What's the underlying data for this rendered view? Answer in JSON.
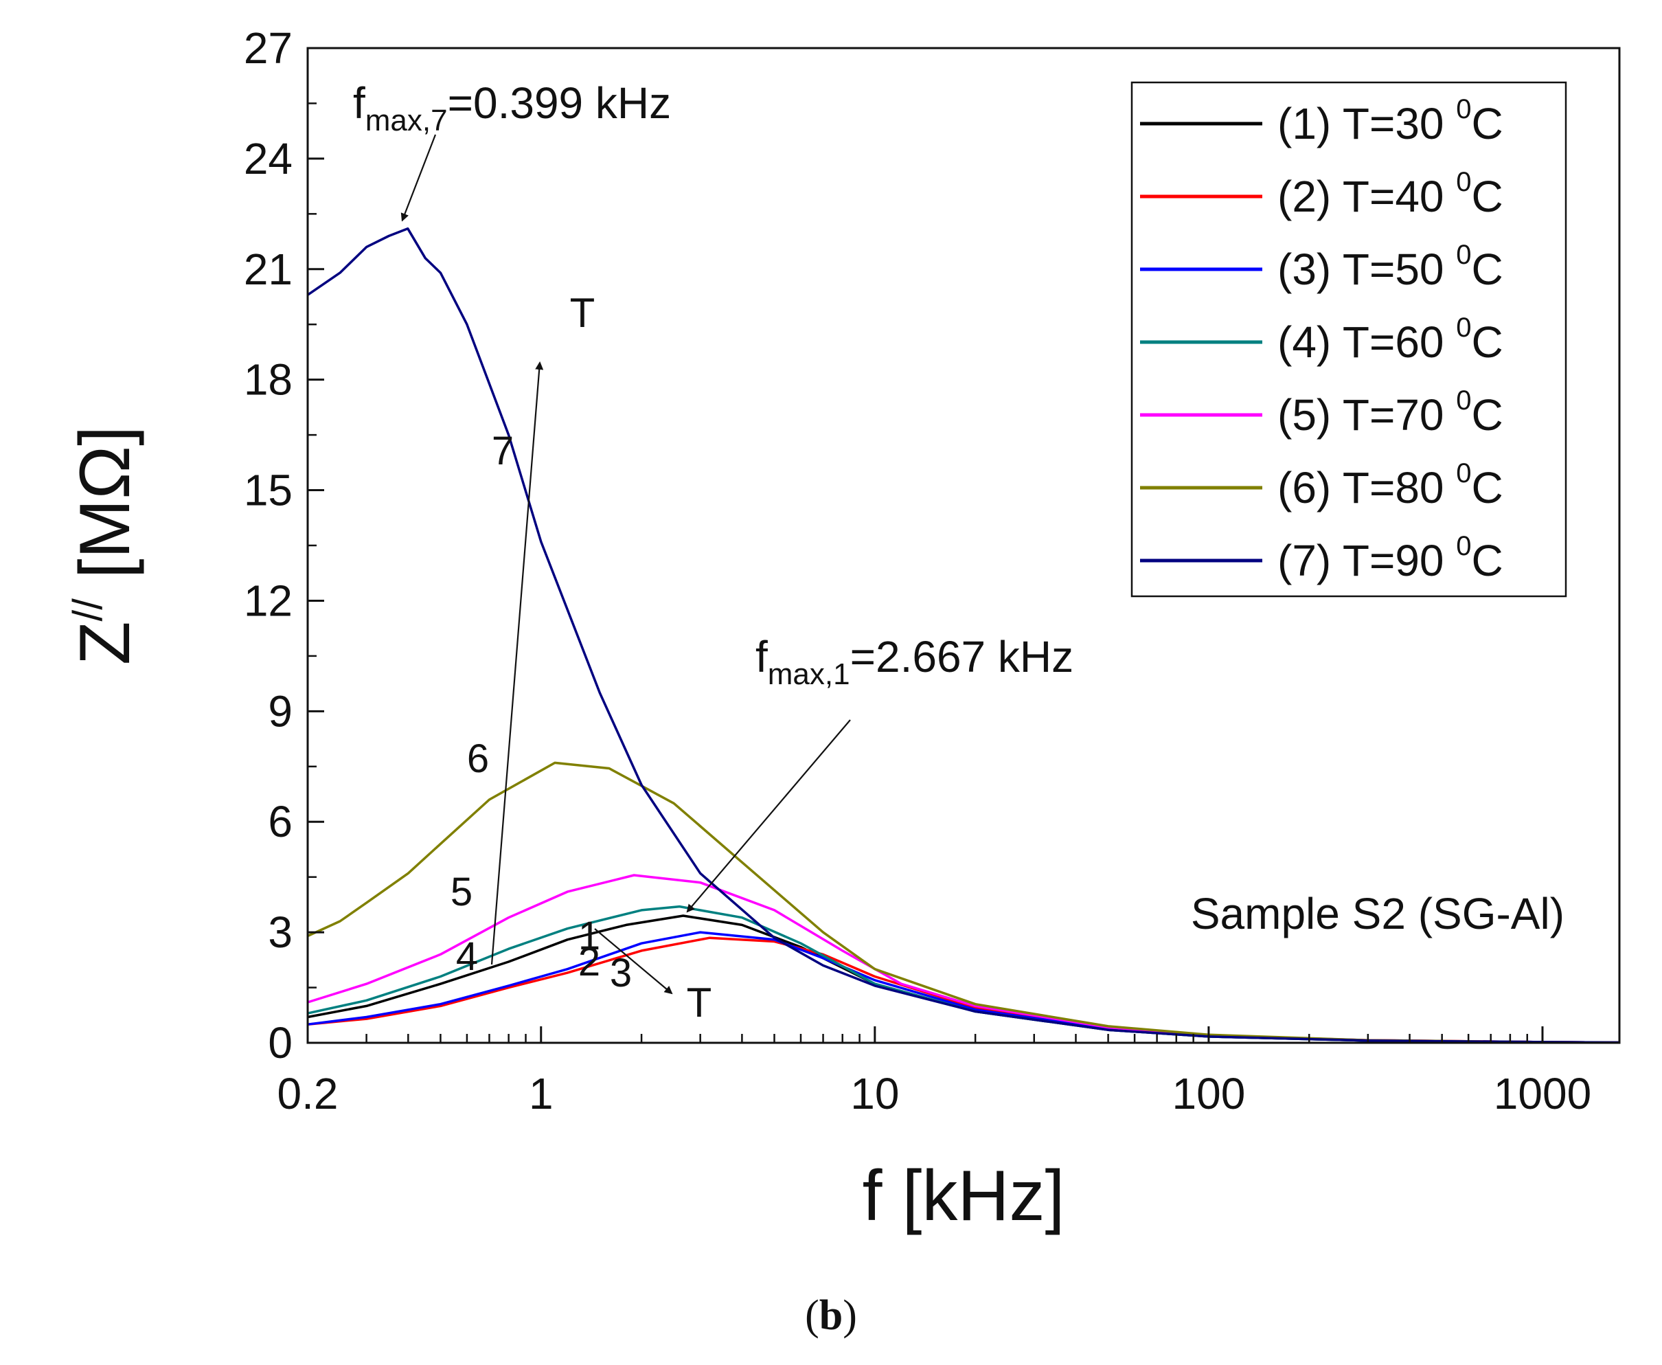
{
  "chart_data": {
    "type": "line",
    "x_scale": "log",
    "xlabel": "f [kHz]",
    "ylabel_main": "Z",
    "ylabel_sup": "//",
    "ylabel_unit": "[MΩ]",
    "xlim": [
      0.2,
      1700
    ],
    "ylim": [
      0,
      27
    ],
    "x_ticks": [
      0.2,
      1,
      10,
      100,
      1000
    ],
    "x_tick_labels": [
      "0.2",
      "1",
      "10",
      "100",
      "1000"
    ],
    "y_ticks": [
      0,
      3,
      6,
      9,
      12,
      15,
      18,
      21,
      24,
      27
    ],
    "y_tick_labels": [
      "0",
      "3",
      "6",
      "9",
      "12",
      "15",
      "18",
      "21",
      "24",
      "27"
    ],
    "legend_position": "top-right",
    "sample_label": "Sample S2 (SG-Al)",
    "series": [
      {
        "name": "(1) T=30",
        "label_num": "1",
        "color": "#000000",
        "x": [
          0.2,
          0.3,
          0.5,
          0.8,
          1.2,
          1.8,
          2.667,
          4,
          6,
          10,
          20,
          50,
          100,
          300,
          1000,
          1700
        ],
        "y": [
          0.7,
          1.0,
          1.6,
          2.2,
          2.8,
          3.2,
          3.45,
          3.2,
          2.6,
          1.6,
          0.85,
          0.35,
          0.17,
          0.06,
          0.02,
          0.01
        ]
      },
      {
        "name": "(2) T=40",
        "label_num": "2",
        "color": "#ff0000",
        "x": [
          0.2,
          0.3,
          0.5,
          0.8,
          1.2,
          2,
          3.2,
          5,
          7,
          10,
          20,
          50,
          100,
          300,
          1000,
          1700
        ],
        "y": [
          0.5,
          0.65,
          1.0,
          1.5,
          1.9,
          2.5,
          2.85,
          2.75,
          2.4,
          1.8,
          0.95,
          0.4,
          0.2,
          0.07,
          0.02,
          0.01
        ]
      },
      {
        "name": "(3) T=50",
        "label_num": "3",
        "color": "#0000ff",
        "x": [
          0.2,
          0.3,
          0.5,
          0.8,
          1.2,
          2,
          3,
          5,
          7,
          10,
          20,
          50,
          100,
          300,
          1000,
          1700
        ],
        "y": [
          0.5,
          0.7,
          1.05,
          1.55,
          2.0,
          2.7,
          3.0,
          2.8,
          2.3,
          1.7,
          0.9,
          0.38,
          0.19,
          0.06,
          0.02,
          0.01
        ]
      },
      {
        "name": "(4) T=60",
        "label_num": "4",
        "color": "#008080",
        "x": [
          0.2,
          0.3,
          0.5,
          0.8,
          1.2,
          2,
          2.6,
          4,
          6,
          10,
          20,
          50,
          100,
          300,
          1000,
          1700
        ],
        "y": [
          0.8,
          1.15,
          1.8,
          2.55,
          3.1,
          3.6,
          3.7,
          3.4,
          2.7,
          1.6,
          0.85,
          0.35,
          0.17,
          0.06,
          0.02,
          0.01
        ]
      },
      {
        "name": "(5) T=70",
        "label_num": "5",
        "color": "#ff00ff",
        "x": [
          0.2,
          0.3,
          0.5,
          0.8,
          1.2,
          1.9,
          3,
          5,
          8,
          12,
          20,
          50,
          100,
          300,
          1000,
          1700
        ],
        "y": [
          1.1,
          1.6,
          2.4,
          3.4,
          4.1,
          4.55,
          4.35,
          3.6,
          2.5,
          1.6,
          1.0,
          0.42,
          0.2,
          0.07,
          0.02,
          0.01
        ]
      },
      {
        "name": "(6) T=80",
        "label_num": "6",
        "color": "#808000",
        "x": [
          0.2,
          0.25,
          0.3,
          0.4,
          0.5,
          0.7,
          1.1,
          1.6,
          2.5,
          4,
          7,
          10,
          20,
          50,
          100,
          300,
          1000,
          1700
        ],
        "y": [
          2.9,
          3.3,
          3.8,
          4.6,
          5.4,
          6.6,
          7.6,
          7.45,
          6.5,
          4.9,
          3.0,
          2.0,
          1.05,
          0.45,
          0.22,
          0.07,
          0.02,
          0.01
        ]
      },
      {
        "name": "(7) T=90",
        "label_num": "7",
        "color": "#000080",
        "x": [
          0.2,
          0.25,
          0.3,
          0.35,
          0.399,
          0.45,
          0.5,
          0.6,
          0.8,
          1,
          1.5,
          2,
          3,
          5,
          7,
          10,
          20,
          50,
          100,
          300,
          1000,
          1700
        ],
        "y": [
          20.3,
          20.9,
          21.6,
          21.9,
          22.1,
          21.3,
          20.9,
          19.5,
          16.5,
          13.6,
          9.5,
          7.0,
          4.6,
          2.85,
          2.1,
          1.55,
          0.85,
          0.35,
          0.17,
          0.06,
          0.02,
          0.01
        ]
      }
    ],
    "legend_sup": "0",
    "legend_unit": "C",
    "annotations": [
      {
        "id": "fmax7",
        "main": "f",
        "sub": "max,7",
        "rest": "=0.399 kHz",
        "target_x": 0.399,
        "target_y": 22.1
      },
      {
        "id": "fmax1",
        "main": "f",
        "sub": "max,1",
        "rest": "=2.667 kHz",
        "target_x": 2.667,
        "target_y": 3.45
      }
    ],
    "trend_arrow_label": "T"
  },
  "caption": {
    "open": "(",
    "letter": "b",
    "close": ")"
  }
}
